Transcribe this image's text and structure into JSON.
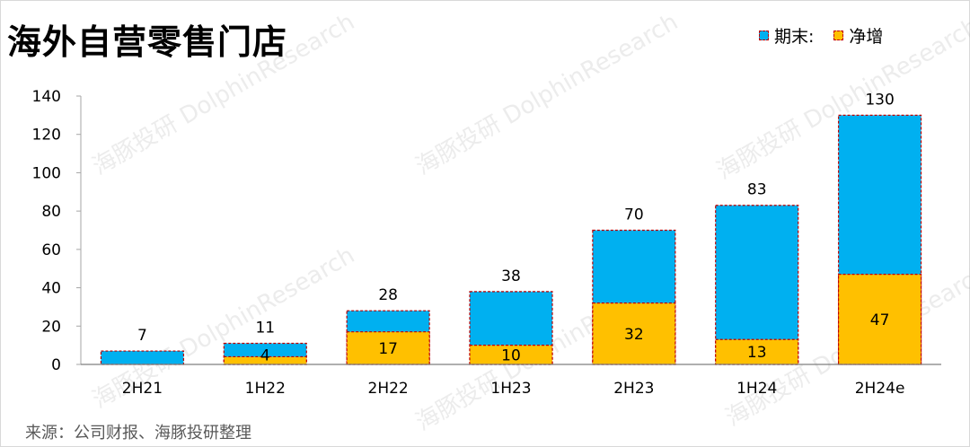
{
  "title": "海外自营零售门店",
  "legend": {
    "items": [
      {
        "label": "期末:",
        "color": "#00b0f0"
      },
      {
        "label": "净增",
        "color": "#ffc000"
      }
    ]
  },
  "source": "来源：公司财报、海豚投研整理",
  "watermark": {
    "cn": "海豚投研",
    "en": "DolphinResearch"
  },
  "chart_data": {
    "type": "bar",
    "categories": [
      "2H21",
      "1H22",
      "2H22",
      "1H23",
      "2H23",
      "1H24",
      "2H24e"
    ],
    "series": [
      {
        "name": "期末:",
        "values": [
          7,
          11,
          28,
          38,
          70,
          83,
          130
        ],
        "color": "#00b0f0"
      },
      {
        "name": "净增",
        "values": [
          null,
          4,
          17,
          10,
          32,
          13,
          47
        ],
        "color": "#ffc000"
      }
    ],
    "ylim": [
      0,
      140
    ],
    "yticks": [
      0,
      20,
      40,
      60,
      80,
      100,
      120,
      140
    ],
    "legend_position": "top-right",
    "grid": false,
    "overlay": true
  }
}
